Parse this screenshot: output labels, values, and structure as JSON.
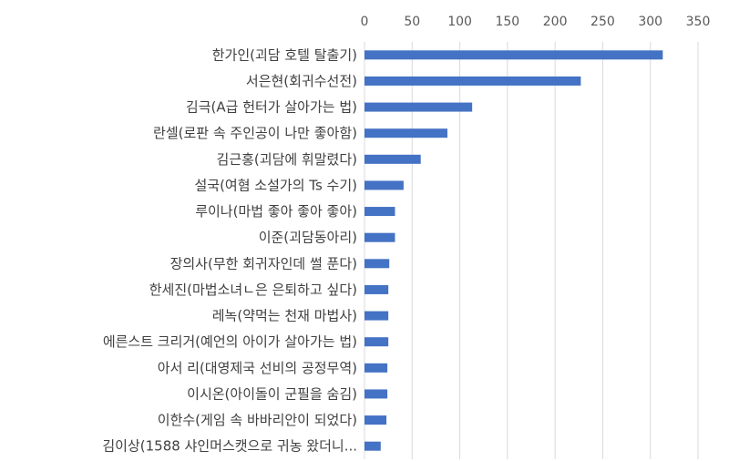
{
  "chart_data": {
    "type": "bar",
    "orientation": "horizontal",
    "categories": [
      "한가인(괴담 호텔 탈출기)",
      "서은현(회귀수선전)",
      "김극(A급 헌터가 살아가는 법)",
      "란셀(로판 속 주인공이 나만 좋아함)",
      "김근홍(괴담에 휘말렸다)",
      "설국(여혐 소설가의 Ts 수기)",
      "루이나(마법 좋아 좋아 좋아)",
      "이준(괴담동아리)",
      "장의사(무한 회귀자인데 썰 푼다)",
      "한세진(마법소녀ㄴ은 은퇴하고 싶다)",
      "레녹(약먹는 천재 마법사)",
      "에른스트 크리거(예언의 아이가 살아가는 법)",
      "아서 리(대영제국 선비의 공정무역)",
      "이시온(아이돌이 군필을 숨김)",
      "이한수(게임 속 바바리안이 되었다)",
      "김이상(1588 샤인머스캣으로 귀농 왔더니..."
    ],
    "values": [
      313,
      227,
      113,
      87,
      59,
      41,
      32,
      32,
      26,
      25,
      25,
      25,
      24,
      24,
      23,
      17
    ],
    "xlim": [
      0,
      350
    ],
    "xticks": [
      "0",
      "50",
      "100",
      "150",
      "200",
      "250",
      "300",
      "350"
    ],
    "grid": true,
    "bar_color": "#4472C4",
    "grid_color": "#D9D9D9"
  }
}
